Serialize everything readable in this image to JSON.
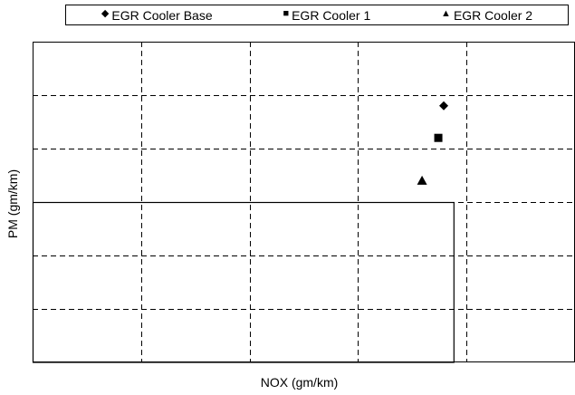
{
  "chart_data": {
    "type": "scatter",
    "title": "",
    "xlabel": "NOX (gm/km)",
    "ylabel": "PM (gm/km)",
    "xlim": [
      0,
      5
    ],
    "ylim": [
      0,
      6
    ],
    "grid": true,
    "grid_style": "dashed",
    "legend_position": "top",
    "series": [
      {
        "name": "EGR Cooler Base",
        "marker": "diamond",
        "color": "#000000",
        "x": [
          3.79
        ],
        "y": [
          4.8
        ]
      },
      {
        "name": "EGR Cooler 1",
        "marker": "square",
        "color": "#000000",
        "x": [
          3.74
        ],
        "y": [
          4.2
        ]
      },
      {
        "name": "EGR Cooler 2",
        "marker": "triangle",
        "color": "#000000",
        "x": [
          3.59
        ],
        "y": [
          3.4
        ]
      }
    ],
    "limit_box": {
      "x": [
        0,
        3.88
      ],
      "y": [
        0,
        3
      ]
    }
  },
  "legend_markers": [
    "◆",
    "■",
    "▲"
  ]
}
